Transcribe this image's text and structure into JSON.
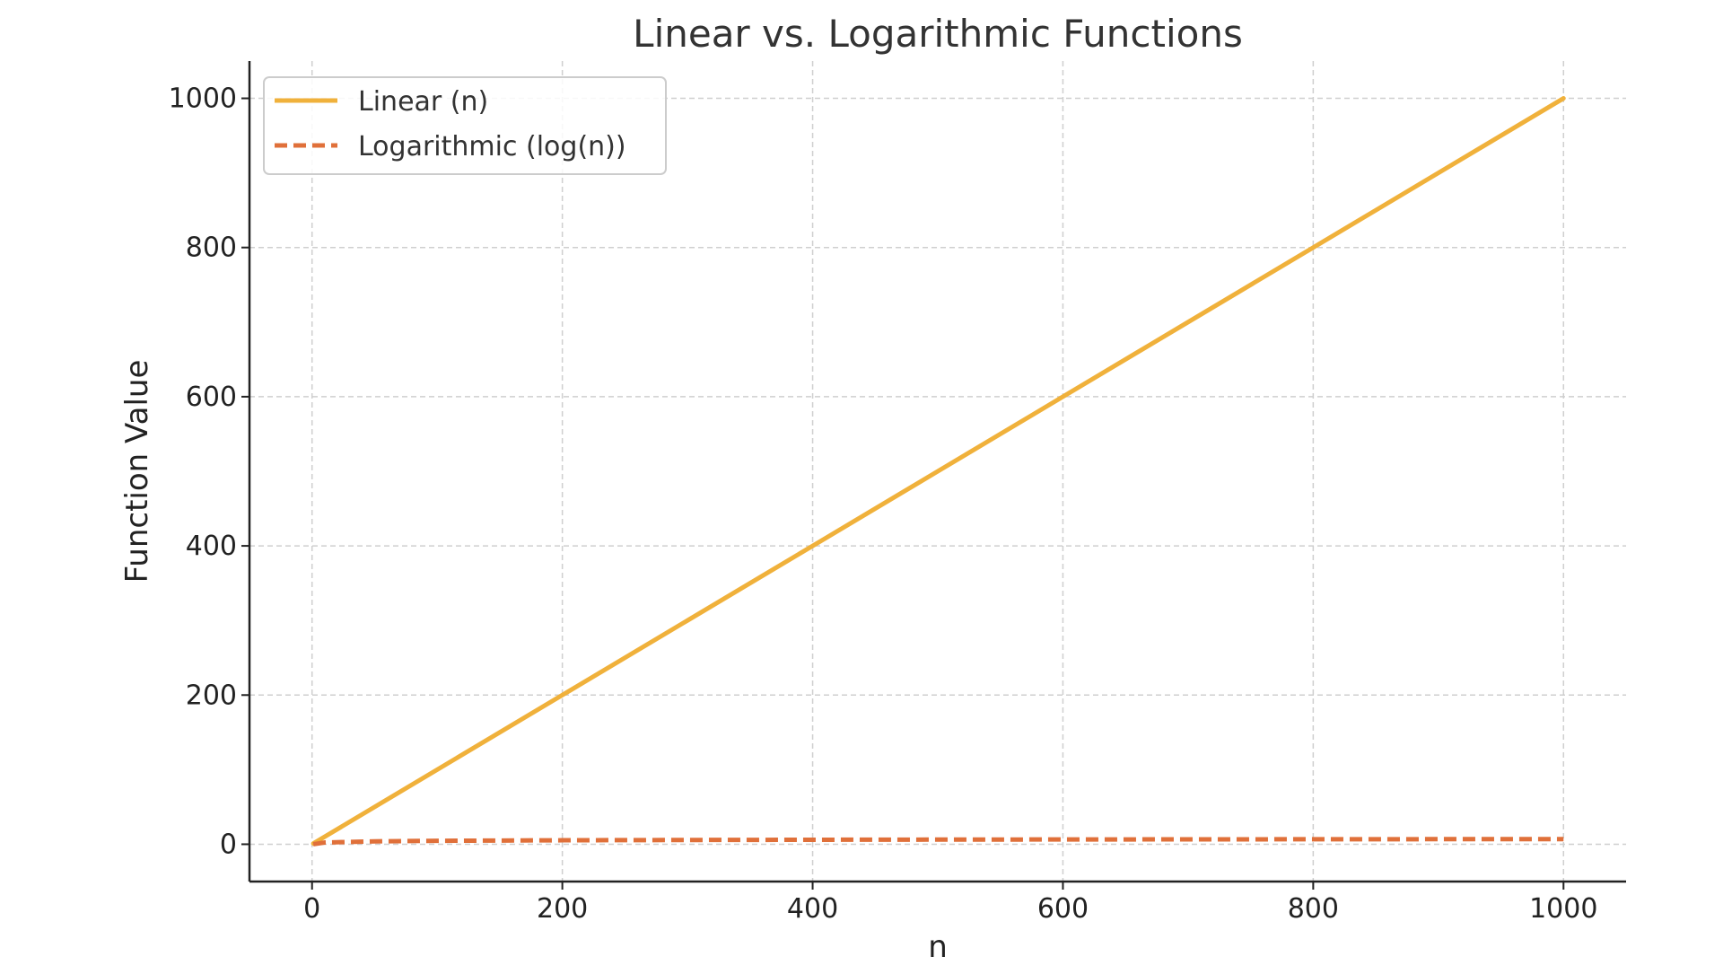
{
  "chart_data": {
    "type": "line",
    "title": "Linear vs. Logarithmic Functions",
    "xlabel": "n",
    "ylabel": "Function Value",
    "xlim": [
      -50,
      1050
    ],
    "ylim": [
      -50,
      1050
    ],
    "xticks": [
      0,
      200,
      400,
      600,
      800,
      1000
    ],
    "yticks": [
      0,
      200,
      400,
      600,
      800,
      1000
    ],
    "grid": true,
    "legend_position": "top-left",
    "series": [
      {
        "name": "Linear (n)",
        "color": "#F0B13B",
        "style": "solid",
        "x": [
          1,
          100,
          200,
          300,
          400,
          500,
          600,
          700,
          800,
          900,
          1000
        ],
        "y": [
          1,
          100,
          200,
          300,
          400,
          500,
          600,
          700,
          800,
          900,
          1000
        ]
      },
      {
        "name": "Logarithmic (log(n))",
        "color": "#E0703A",
        "style": "dashed",
        "x": [
          1,
          10,
          50,
          100,
          200,
          300,
          400,
          500,
          600,
          700,
          800,
          900,
          1000
        ],
        "y": [
          0.0,
          2.3,
          3.9,
          4.6,
          5.3,
          5.7,
          6.0,
          6.2,
          6.4,
          6.55,
          6.68,
          6.8,
          6.91
        ]
      }
    ]
  }
}
